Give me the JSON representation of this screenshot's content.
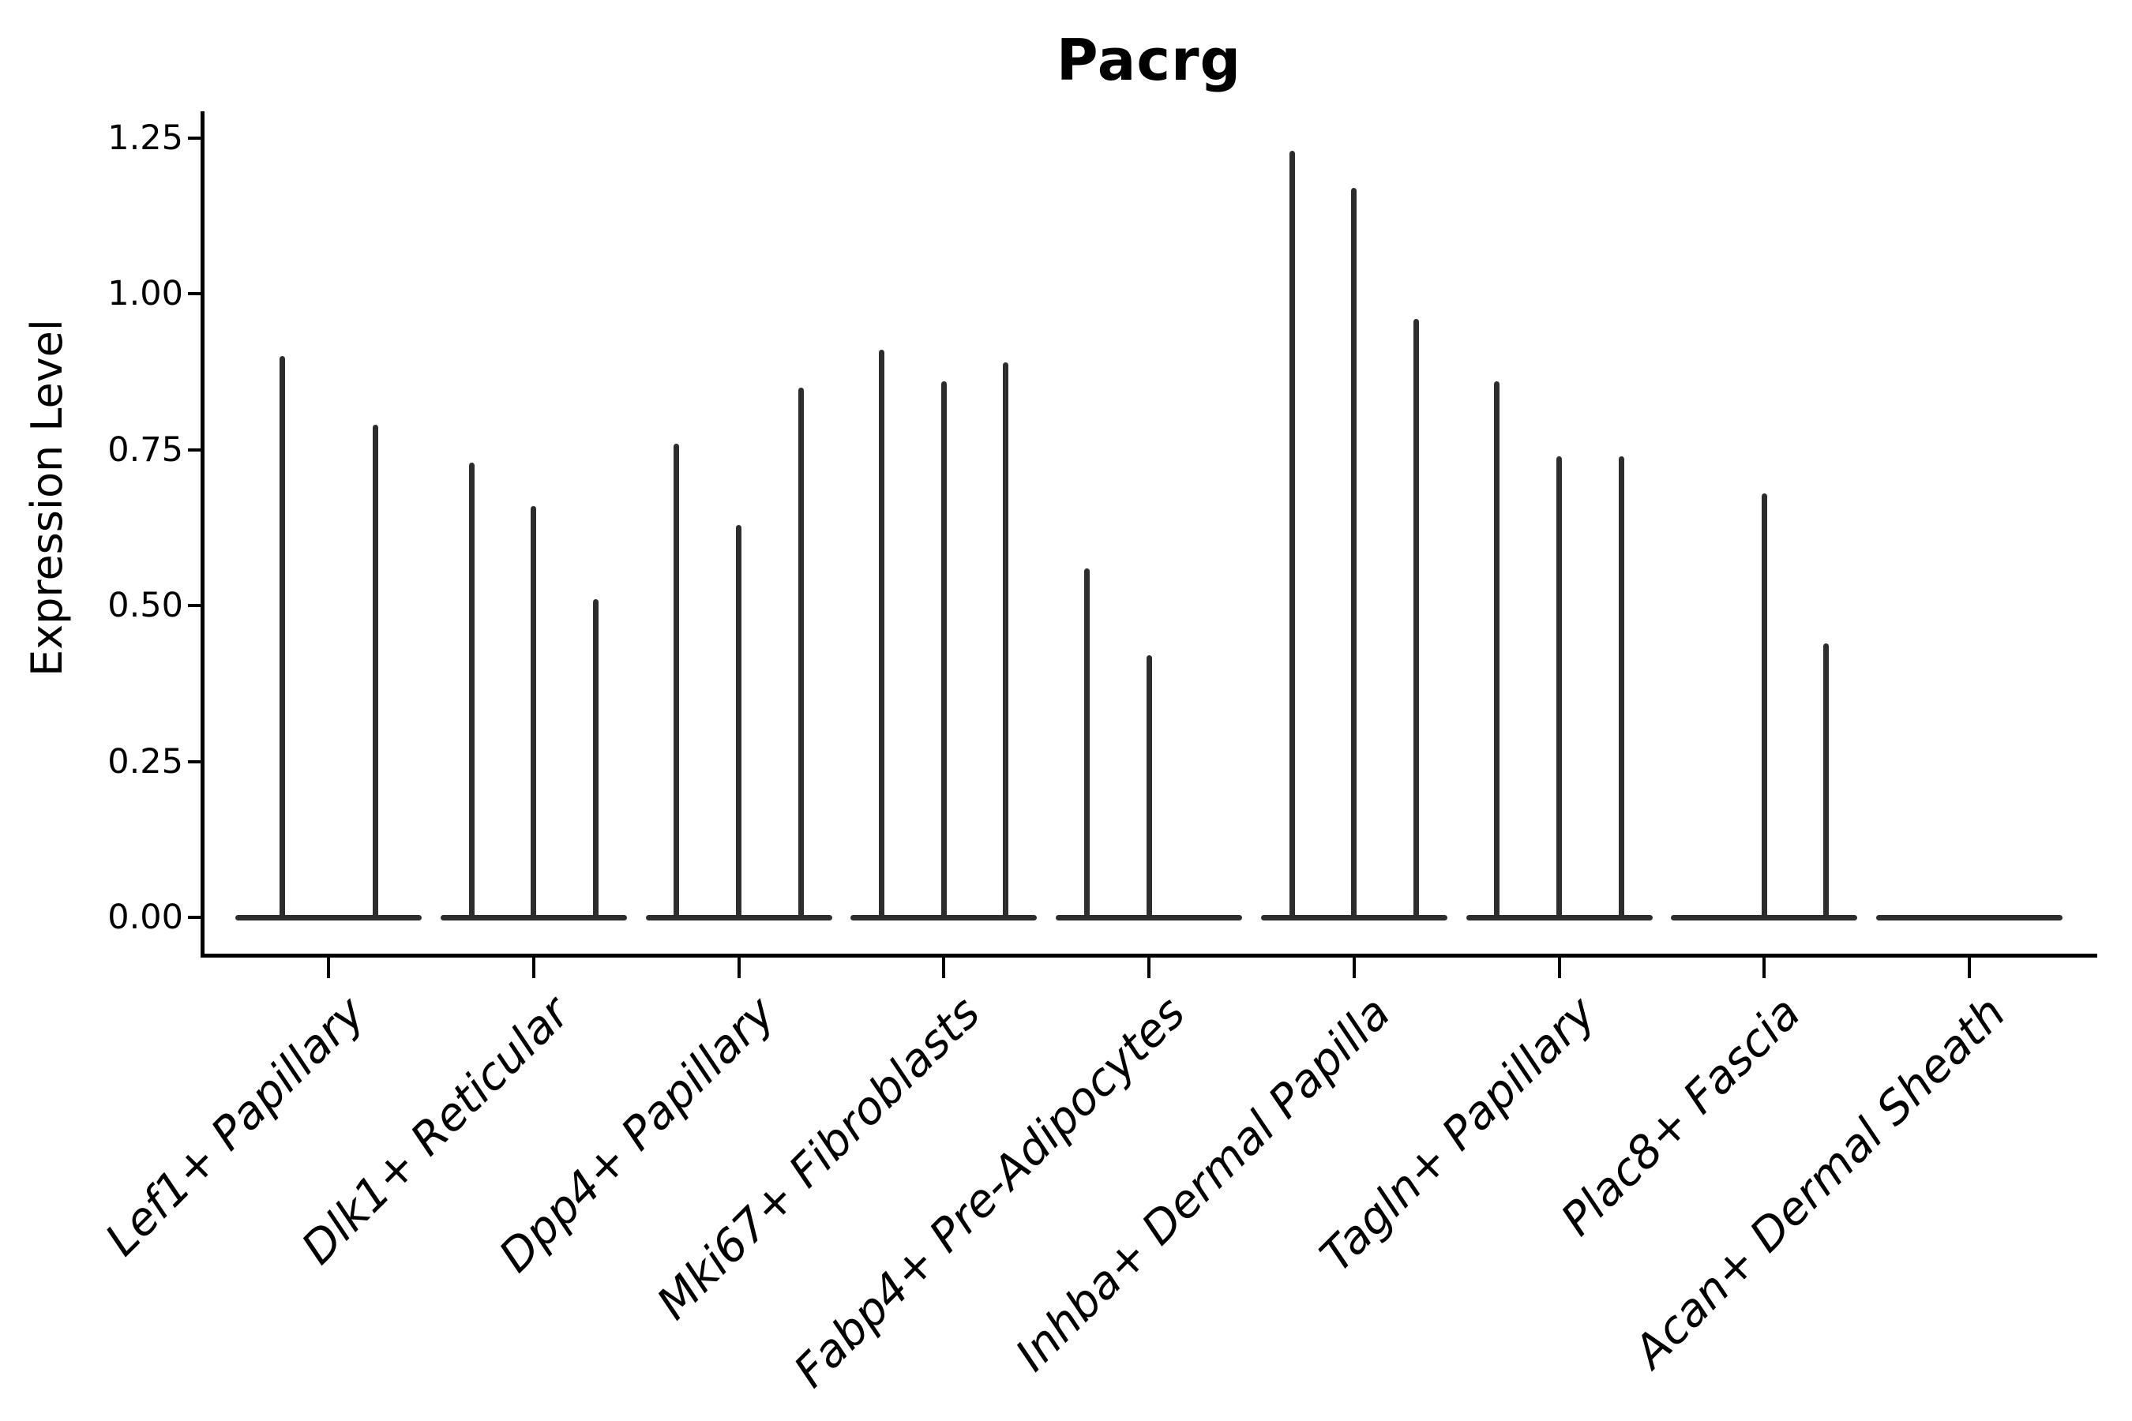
{
  "figure": {
    "title": "Pacrg"
  },
  "axes": {
    "ylabel": "Expression Level",
    "ytick_labels": [
      "0.00",
      "0.25",
      "0.50",
      "0.75",
      "1.00",
      "1.25"
    ]
  },
  "colors": {
    "violin": "#2d2d2d",
    "axis": "#000000",
    "text": "#000000",
    "background": "#ffffff"
  },
  "chart_data": {
    "type": "violin",
    "title": "Pacrg",
    "xlabel": "",
    "ylabel": "Expression Level",
    "ylim": [
      -0.06,
      1.29
    ],
    "yticks": [
      0.0,
      0.25,
      0.5,
      0.75,
      1.0,
      1.25
    ],
    "grid": false,
    "legend": null,
    "description": "Needle-thin violins of gene expression per cell type; each category holds 2-3 sub-violins (flat base at 0 with a thin spike up to the max expression; 0 = fully flat violin).",
    "categories": [
      "Lef1+ Papillary",
      "Dlk1+ Reticular",
      "Dpp4+ Papillary",
      "Mki67+ Fibroblasts",
      "Fabp4+ Pre-Adipocytes",
      "Inhba+ Dermal Papilla",
      "Tagln+ Papillary",
      "Plac8+ Fascia",
      "Acan+ Dermal Sheath"
    ],
    "series": [
      {
        "category": "Lef1+ Papillary",
        "violin_peaks": [
          0.9,
          0.79
        ]
      },
      {
        "category": "Dlk1+ Reticular",
        "violin_peaks": [
          0.73,
          0.66,
          0.51
        ]
      },
      {
        "category": "Dpp4+ Papillary",
        "violin_peaks": [
          0.76,
          0.63,
          0.85
        ]
      },
      {
        "category": "Mki67+ Fibroblasts",
        "violin_peaks": [
          0.91,
          0.86,
          0.89
        ]
      },
      {
        "category": "Fabp4+ Pre-Adipocytes",
        "violin_peaks": [
          0.56,
          0.42,
          0.0
        ]
      },
      {
        "category": "Inhba+ Dermal Papilla",
        "violin_peaks": [
          1.23,
          1.17,
          0.96
        ]
      },
      {
        "category": "Tagln+ Papillary",
        "violin_peaks": [
          0.86,
          0.74,
          0.74
        ]
      },
      {
        "category": "Plac8+ Fascia",
        "violin_peaks": [
          0.0,
          0.68,
          0.44
        ]
      },
      {
        "category": "Acan+ Dermal Sheath",
        "violin_peaks": [
          0.0,
          0.0,
          0.0
        ]
      }
    ]
  }
}
